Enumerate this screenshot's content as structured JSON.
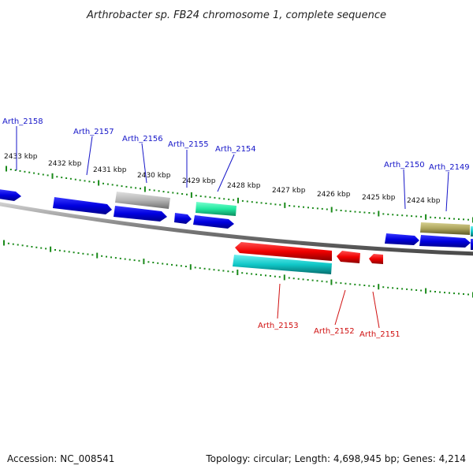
{
  "title": "Arthrobacter sp. FB24 chromosome 1, complete sequence",
  "footer": {
    "accession": "Accession: NC_008541",
    "summary": "Topology: circular; Length: 4,698,945 bp; Genes: 4,214"
  },
  "ticks": [
    "2433 kbp",
    "2432 kbp",
    "2431 kbp",
    "2430 kbp",
    "2429 kbp",
    "2428 kbp",
    "2427 kbp",
    "2426 kbp",
    "2425 kbp",
    "2424 kbp"
  ],
  "top_labels": [
    "Arth_2158",
    "Arth_2157",
    "Arth_2156",
    "Arth_2155",
    "Arth_2154",
    "Arth_2150",
    "Arth_2149"
  ],
  "bottom_labels": [
    "Arth_2153",
    "Arth_2152",
    "Arth_2151"
  ],
  "colors": {
    "forward_label": "#1515c8",
    "reverse_label": "#d01010",
    "blue_gene": "#0a0ae0",
    "grey_gene": "#b8b8b8",
    "green_gene": "#22e8a0",
    "olive_gene": "#b0a860",
    "red_gene": "#f00000",
    "cyan_gene": "#10c8c8",
    "tick": "#1a8a1a",
    "backbone": "#888888"
  }
}
